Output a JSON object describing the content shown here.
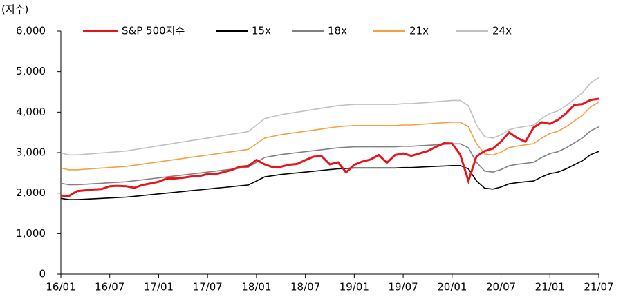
{
  "chart_data": {
    "type": "line",
    "y_label": "(지수)",
    "categories": [
      "16/01",
      null,
      null,
      null,
      null,
      null,
      "16/07",
      null,
      null,
      null,
      null,
      null,
      "17/01",
      null,
      null,
      null,
      null,
      null,
      "17/07",
      null,
      null,
      null,
      null,
      null,
      "18/01",
      null,
      null,
      null,
      null,
      null,
      "18/07",
      null,
      null,
      null,
      null,
      null,
      "19/01",
      null,
      null,
      null,
      null,
      null,
      "19/07",
      null,
      null,
      null,
      null,
      null,
      "20/01",
      null,
      null,
      null,
      null,
      null,
      "20/07",
      null,
      null,
      null,
      null,
      null,
      "21/01",
      null,
      null,
      null,
      null,
      null,
      "21/07"
    ],
    "ylim": [
      0,
      6000
    ],
    "yticks": [
      0,
      {
        "value": 1000,
        "label": "1,000"
      },
      {
        "value": 2000,
        "label": "2,000"
      },
      {
        "value": 3000,
        "label": "3,000"
      },
      {
        "value": 4000,
        "label": "4,000"
      },
      {
        "value": 5000,
        "label": "5,000"
      },
      {
        "value": 6000,
        "label": "6,000"
      }
    ],
    "legend": "top",
    "series": [
      {
        "name": "S&P 500지수",
        "color": "#e8141c",
        "values": [
          1940,
          1930,
          2050,
          2070,
          2090,
          2100,
          2170,
          2180,
          2170,
          2130,
          2200,
          2240,
          2280,
          2360,
          2360,
          2380,
          2410,
          2420,
          2470,
          2470,
          2520,
          2575,
          2650,
          2670,
          2820,
          2710,
          2640,
          2650,
          2700,
          2720,
          2815,
          2900,
          2910,
          2710,
          2760,
          2510,
          2700,
          2780,
          2830,
          2940,
          2750,
          2940,
          2980,
          2920,
          2980,
          3040,
          3140,
          3230,
          3225,
          2950,
          2300,
          2910,
          3040,
          3100,
          3270,
          3500,
          3360,
          3270,
          3620,
          3750,
          3710,
          3810,
          3970,
          4180,
          4200,
          4300,
          4330
        ]
      },
      {
        "name": "15x",
        "color": "#000000",
        "values": [
          1870,
          1840,
          1840,
          1850,
          1860,
          1870,
          1880,
          1890,
          1900,
          1920,
          1940,
          1960,
          1980,
          2000,
          2020,
          2040,
          2060,
          2080,
          2100,
          2120,
          2140,
          2160,
          2180,
          2200,
          2300,
          2400,
          2430,
          2460,
          2480,
          2500,
          2520,
          2540,
          2560,
          2580,
          2600,
          2610,
          2620,
          2620,
          2620,
          2620,
          2620,
          2620,
          2630,
          2630,
          2640,
          2650,
          2660,
          2670,
          2680,
          2680,
          2600,
          2300,
          2120,
          2100,
          2150,
          2230,
          2260,
          2280,
          2300,
          2400,
          2480,
          2520,
          2600,
          2700,
          2800,
          2950,
          3030
        ]
      },
      {
        "name": "18x",
        "color": "#808080",
        "values": [
          2244,
          2208,
          2208,
          2220,
          2232,
          2244,
          2256,
          2268,
          2280,
          2304,
          2328,
          2352,
          2376,
          2400,
          2424,
          2448,
          2472,
          2496,
          2520,
          2544,
          2568,
          2592,
          2616,
          2640,
          2760,
          2880,
          2916,
          2952,
          2976,
          3000,
          3024,
          3048,
          3072,
          3096,
          3120,
          3132,
          3144,
          3144,
          3144,
          3144,
          3144,
          3144,
          3156,
          3156,
          3168,
          3180,
          3192,
          3204,
          3216,
          3216,
          3120,
          2760,
          2544,
          2520,
          2580,
          2676,
          2712,
          2736,
          2760,
          2880,
          2976,
          3024,
          3120,
          3240,
          3360,
          3540,
          3636
        ]
      },
      {
        "name": "21x",
        "color": "#f5a040",
        "values": [
          2618,
          2576,
          2576,
          2590,
          2604,
          2618,
          2632,
          2646,
          2660,
          2688,
          2716,
          2744,
          2772,
          2800,
          2828,
          2856,
          2884,
          2912,
          2940,
          2968,
          2996,
          3024,
          3052,
          3080,
          3220,
          3360,
          3402,
          3444,
          3472,
          3500,
          3528,
          3556,
          3584,
          3612,
          3640,
          3654,
          3668,
          3668,
          3668,
          3668,
          3668,
          3668,
          3682,
          3682,
          3696,
          3710,
          3724,
          3738,
          3752,
          3752,
          3640,
          3220,
          2968,
          2940,
          3010,
          3122,
          3164,
          3192,
          3220,
          3360,
          3472,
          3528,
          3640,
          3780,
          3920,
          4130,
          4242
        ]
      },
      {
        "name": "24x",
        "color": "#c0c0c0",
        "values": [
          2992,
          2944,
          2944,
          2960,
          2976,
          2992,
          3008,
          3024,
          3040,
          3072,
          3104,
          3136,
          3168,
          3200,
          3232,
          3264,
          3296,
          3328,
          3360,
          3392,
          3424,
          3456,
          3488,
          3520,
          3680,
          3840,
          3888,
          3936,
          3968,
          4000,
          4032,
          4064,
          4096,
          4128,
          4160,
          4176,
          4192,
          4192,
          4192,
          4192,
          4192,
          4192,
          4208,
          4208,
          4224,
          4240,
          4256,
          4272,
          4288,
          4288,
          4160,
          3680,
          3392,
          3360,
          3440,
          3568,
          3616,
          3648,
          3680,
          3840,
          3968,
          4032,
          4160,
          4320,
          4480,
          4720,
          4848
        ]
      }
    ]
  }
}
